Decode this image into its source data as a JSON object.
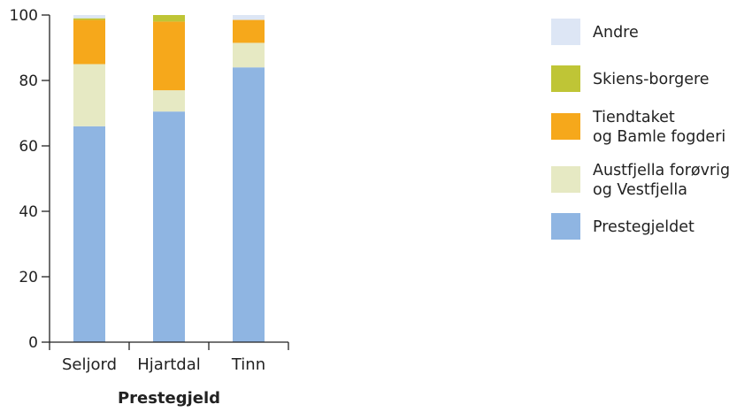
{
  "chart_data": {
    "type": "bar",
    "stacked": true,
    "categories": [
      "Seljord",
      "Hjartdal",
      "Tinn"
    ],
    "xlabel": "Prestegjeld",
    "ylabel": "",
    "ylim": [
      0,
      100
    ],
    "yticks": [
      0,
      20,
      40,
      60,
      80,
      100
    ],
    "grid": false,
    "legend_position": "right",
    "series": [
      {
        "name": "Prestegjeldet",
        "label_lines": [
          "Prestegjeldet"
        ],
        "color": "#8fb5e2",
        "values": [
          66,
          70.5,
          84
        ]
      },
      {
        "name": "Austfjella forøvrig og Vestfjella",
        "label_lines": [
          "Austfjella forøvrig",
          "og Vestfjella"
        ],
        "color": "#e6e9c3",
        "values": [
          19,
          6.5,
          7.5
        ]
      },
      {
        "name": "Tiendtaket og Bamle fogderi",
        "label_lines": [
          "Tiendtaket",
          "og Bamle fogderi"
        ],
        "color": "#f6a81b",
        "values": [
          13.5,
          21,
          7
        ]
      },
      {
        "name": "Skiens-borgere",
        "label_lines": [
          "Skiens-borgere"
        ],
        "color": "#bfc536",
        "values": [
          0.5,
          2,
          0
        ]
      },
      {
        "name": "Andre",
        "label_lines": [
          "Andre"
        ],
        "color": "#dde6f5",
        "values": [
          1,
          0,
          1.5
        ]
      }
    ]
  }
}
